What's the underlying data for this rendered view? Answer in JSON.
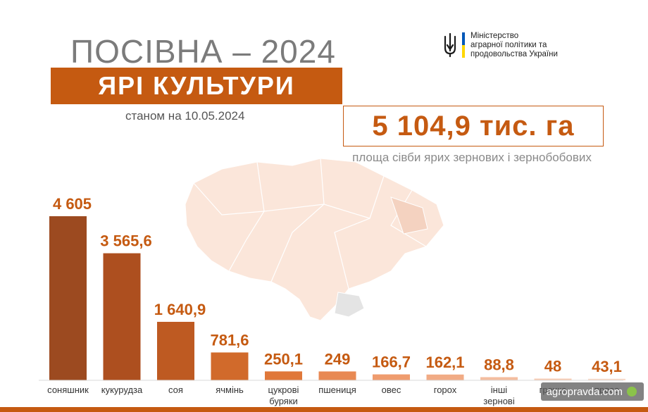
{
  "header": {
    "title": "ПОСІВНА – 2024",
    "subtitle": "ЯРІ КУЛЬТУРИ",
    "as_of": "станом на 10.05.2024"
  },
  "total": {
    "value": "5 104,9 тис. га",
    "caption": "площа сівби ярих зернових і зернобобових"
  },
  "ministry": {
    "line1": "Міністерство",
    "line2": "аграрної політики та",
    "line3": "продовольства України"
  },
  "watermark": {
    "text": "agropravda.com"
  },
  "colors": {
    "accent": "#c55a11",
    "bar_dark": "#a04a1c",
    "bar_light": "#f7d7c6",
    "value_text": "#c55a11",
    "map_fill": "#fbe3d5"
  },
  "chart_data": {
    "type": "bar",
    "categories": [
      "соняшник",
      "кукурудза",
      "соя",
      "ячмінь",
      "цукрові буряки",
      "пшениця",
      "овес",
      "горох",
      "інші зернові",
      "гречка",
      "просо"
    ],
    "category_lines": [
      [
        "соняшник"
      ],
      [
        "кукурудза"
      ],
      [
        "соя"
      ],
      [
        "ячмінь"
      ],
      [
        "цукрові",
        "буряки"
      ],
      [
        "пшениця"
      ],
      [
        "овес"
      ],
      [
        "горох"
      ],
      [
        "інші",
        "зернові"
      ],
      [
        "гречка"
      ],
      [
        "просо"
      ]
    ],
    "values": [
      4605,
      3565.6,
      1640.9,
      781.6,
      250.1,
      249,
      166.7,
      162.1,
      88.8,
      48,
      43.1
    ],
    "labels": [
      "4 605",
      "3 565,6",
      "1 640,9",
      "781,6",
      "250,1",
      "249",
      "166,7",
      "162,1",
      "88,8",
      "48",
      "43,1"
    ],
    "bar_colors": [
      "#9c4a20",
      "#ad4f1f",
      "#be5a22",
      "#d16a2b",
      "#e0783a",
      "#e88953",
      "#ef9c6e",
      "#f1ab85",
      "#f4bd9f",
      "#f7cbb3",
      "#f9d9c8"
    ],
    "ylim": [
      0,
      4605
    ],
    "grid": false,
    "legend": "none",
    "xlabel": "",
    "ylabel": ""
  }
}
